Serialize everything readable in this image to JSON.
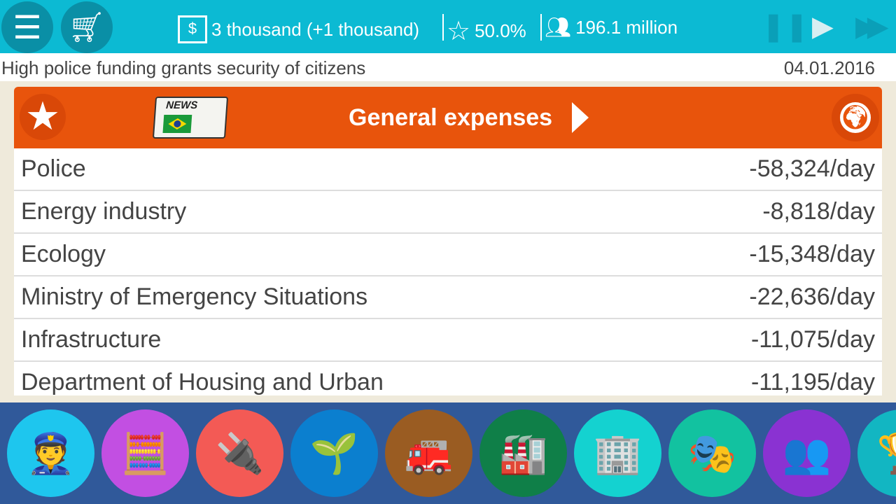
{
  "topbar": {
    "money": "3 thousand (+1 thousand)",
    "rating": "50.0%",
    "population": "196.1 million"
  },
  "subheader": {
    "message": "High police funding grants security of citizens",
    "date": "04.01.2016"
  },
  "panel": {
    "title": "General expenses",
    "news_label": "NEWS",
    "rows": [
      {
        "label": "Police",
        "value": "-58,324/day"
      },
      {
        "label": "Energy industry",
        "value": "-8,818/day"
      },
      {
        "label": "Ecology",
        "value": "-15,348/day"
      },
      {
        "label": "Ministry of Emergency Situations",
        "value": "-22,636/day"
      },
      {
        "label": "Infrastructure",
        "value": "-11,075/day"
      },
      {
        "label": "Department of Housing and Urban",
        "value": "-11,195/day"
      }
    ]
  },
  "categories": [
    {
      "name": "police",
      "color": "#1ec6ee",
      "icon": "👮"
    },
    {
      "name": "finance",
      "color": "#c24fe2",
      "icon": "🧮"
    },
    {
      "name": "energy",
      "color": "#f35a55",
      "icon": "🔌"
    },
    {
      "name": "ecology",
      "color": "#0b7fcf",
      "icon": "🌱"
    },
    {
      "name": "emergency",
      "color": "#9a5c22",
      "icon": "🚒"
    },
    {
      "name": "industry",
      "color": "#0f7f48",
      "icon": "🏭"
    },
    {
      "name": "housing",
      "color": "#14d2d0",
      "icon": "🏢"
    },
    {
      "name": "culture",
      "color": "#12c2a0",
      "icon": "🎭"
    },
    {
      "name": "society",
      "color": "#8a32d2",
      "icon": "👥"
    },
    {
      "name": "achievements",
      "color": "#12b6c2",
      "icon": "🏆"
    }
  ]
}
